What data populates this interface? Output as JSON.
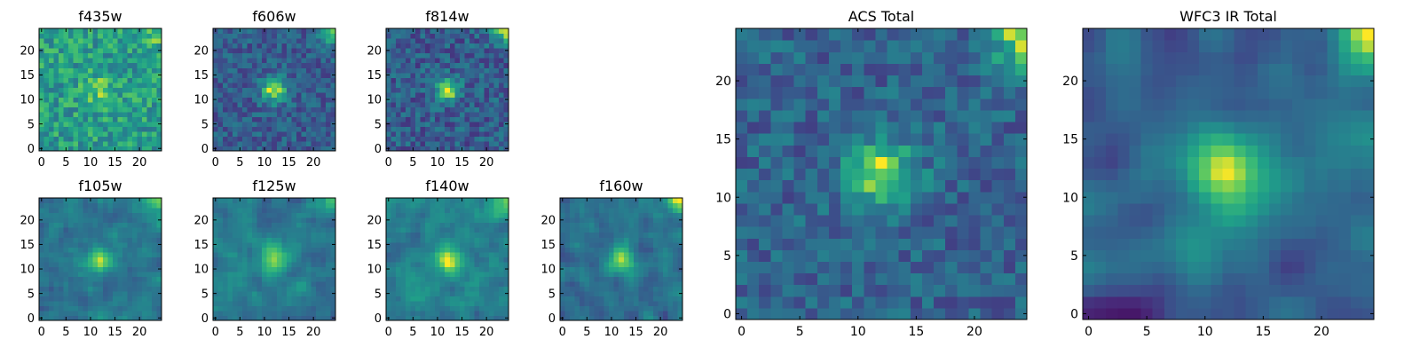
{
  "chart_data": [
    {
      "type": "heatmap",
      "title": "f435w",
      "xticks": [
        0,
        5,
        10,
        15,
        20
      ],
      "yticks": [
        0,
        5,
        10,
        15,
        20
      ],
      "xlim": [
        0,
        25
      ],
      "ylim": [
        0,
        25
      ],
      "colormap": "viridis",
      "grid_size": [
        25,
        25
      ]
    },
    {
      "type": "heatmap",
      "title": "f606w",
      "xticks": [
        0,
        5,
        10,
        15,
        20
      ],
      "yticks": [
        0,
        5,
        10,
        15,
        20
      ],
      "xlim": [
        0,
        25
      ],
      "ylim": [
        0,
        25
      ],
      "colormap": "viridis",
      "grid_size": [
        25,
        25
      ]
    },
    {
      "type": "heatmap",
      "title": "f814w",
      "xticks": [
        0,
        5,
        10,
        15,
        20
      ],
      "yticks": [
        0,
        5,
        10,
        15,
        20
      ],
      "xlim": [
        0,
        25
      ],
      "ylim": [
        0,
        25
      ],
      "colormap": "viridis",
      "grid_size": [
        25,
        25
      ]
    },
    {
      "type": "heatmap",
      "title": "f105w",
      "xticks": [
        0,
        5,
        10,
        15,
        20
      ],
      "yticks": [
        0,
        5,
        10,
        15,
        20
      ],
      "xlim": [
        0,
        25
      ],
      "ylim": [
        0,
        25
      ],
      "colormap": "viridis",
      "grid_size": [
        25,
        25
      ]
    },
    {
      "type": "heatmap",
      "title": "f125w",
      "xticks": [
        0,
        5,
        10,
        15,
        20
      ],
      "yticks": [
        0,
        5,
        10,
        15,
        20
      ],
      "xlim": [
        0,
        25
      ],
      "ylim": [
        0,
        25
      ],
      "colormap": "viridis",
      "grid_size": [
        25,
        25
      ]
    },
    {
      "type": "heatmap",
      "title": "f140w",
      "xticks": [
        0,
        5,
        10,
        15,
        20
      ],
      "yticks": [
        0,
        5,
        10,
        15,
        20
      ],
      "xlim": [
        0,
        25
      ],
      "ylim": [
        0,
        25
      ],
      "colormap": "viridis",
      "grid_size": [
        25,
        25
      ]
    },
    {
      "type": "heatmap",
      "title": "f160w",
      "xticks": [
        0,
        5,
        10,
        15,
        20
      ],
      "yticks": [
        0,
        5,
        10,
        15,
        20
      ],
      "xlim": [
        0,
        25
      ],
      "ylim": [
        0,
        25
      ],
      "colormap": "viridis",
      "grid_size": [
        25,
        25
      ]
    },
    {
      "type": "heatmap",
      "title": "ACS Total",
      "xticks": [
        0,
        5,
        10,
        15,
        20
      ],
      "yticks": [
        0,
        5,
        10,
        15,
        20
      ],
      "xlim": [
        0,
        25
      ],
      "ylim": [
        0,
        25
      ],
      "colormap": "viridis",
      "grid_size": [
        25,
        25
      ]
    },
    {
      "type": "heatmap",
      "title": "WFC3 IR Total",
      "xticks": [
        0,
        5,
        10,
        15,
        20
      ],
      "yticks": [
        0,
        5,
        10,
        15,
        20
      ],
      "xlim": [
        0,
        25
      ],
      "ylim": [
        0,
        25
      ],
      "colormap": "viridis",
      "grid_size": [
        25,
        25
      ]
    }
  ]
}
